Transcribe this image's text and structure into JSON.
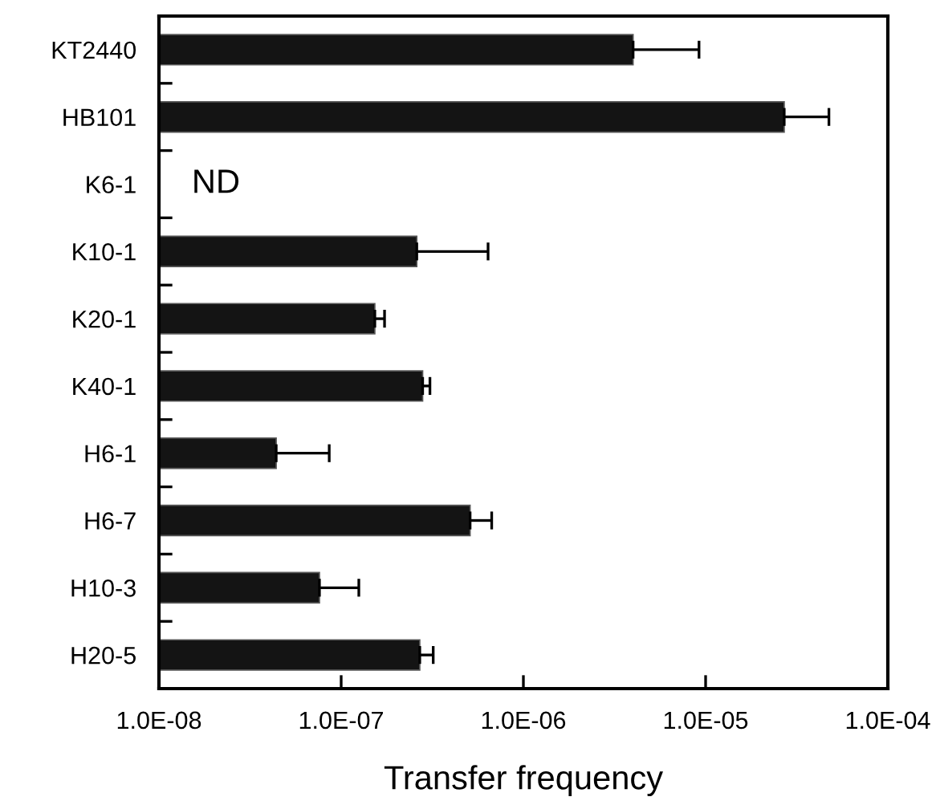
{
  "chart_data": {
    "type": "bar",
    "orientation": "horizontal",
    "log": "x",
    "xlabel": "Transfer frequency",
    "categories": [
      "KT2440",
      "HB101",
      "K6-1",
      "K10-1",
      "K20-1",
      "K40-1",
      "H6-1",
      "H6-7",
      "H10-3",
      "H20-5"
    ],
    "values": [
      4e-06,
      2.7e-05,
      null,
      2.6e-07,
      1.53e-07,
      2.8e-07,
      4.4e-08,
      5.1e-07,
      7.6e-08,
      2.7e-07
    ],
    "errors": [
      [
        4e-06,
        9.2e-06
      ],
      [
        2.7e-05,
        4.75e-05
      ],
      null,
      [
        2.6e-07,
        6.4e-07
      ],
      [
        1.53e-07,
        1.73e-07
      ],
      [
        2.8e-07,
        3.07e-07
      ],
      [
        4.4e-08,
        8.6e-08
      ],
      [
        5.1e-07,
        6.7e-07
      ],
      [
        7.6e-08,
        1.25e-07
      ],
      [
        2.7e-07,
        3.2e-07
      ]
    ],
    "color": "#141414",
    "xlim": [
      1e-08,
      0.0001
    ],
    "xticks": [
      {
        "value": 1e-08,
        "label": "1.0E-08"
      },
      {
        "value": 1e-07,
        "label": "1.0E-07"
      },
      {
        "value": 1e-06,
        "label": "1.0E-06"
      },
      {
        "value": 1e-05,
        "label": "1.0E-05"
      },
      {
        "value": 0.0001,
        "label": "1.0E-04"
      }
    ],
    "annotations": [
      "ND"
    ],
    "grid": false,
    "legend": false
  }
}
